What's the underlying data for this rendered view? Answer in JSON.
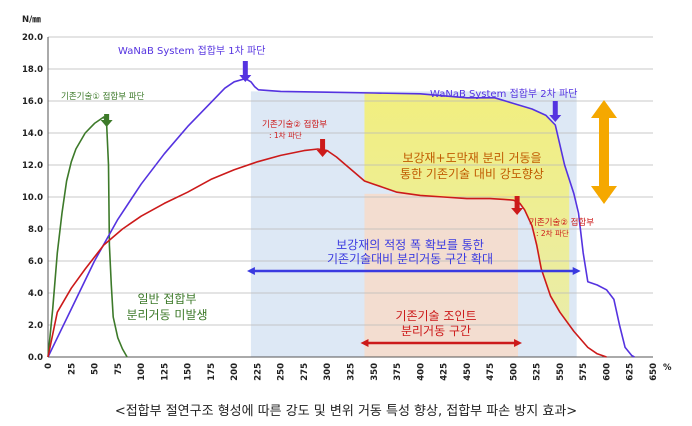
{
  "chart_data": {
    "type": "line",
    "title": "",
    "xlabel": "%",
    "ylabel": "N/㎜",
    "xlim": [
      0,
      650
    ],
    "ylim": [
      0,
      20
    ],
    "x_ticks": [
      0,
      25,
      50,
      75,
      100,
      125,
      150,
      175,
      200,
      225,
      250,
      275,
      300,
      325,
      350,
      375,
      400,
      425,
      450,
      475,
      500,
      525,
      550,
      575,
      600,
      625,
      650
    ],
    "y_ticks": [
      "0.0",
      "2.0",
      "4.0",
      "6.0",
      "8.0",
      "10.0",
      "12.0",
      "14.0",
      "16.0",
      "18.0",
      "20.0"
    ],
    "grid": true,
    "series": [
      {
        "color": "#3d7a2a",
        "points": [
          [
            0,
            0
          ],
          [
            5,
            3
          ],
          [
            10,
            6.5
          ],
          [
            15,
            9
          ],
          [
            20,
            11
          ],
          [
            25,
            12.2
          ],
          [
            30,
            13
          ],
          [
            40,
            14
          ],
          [
            50,
            14.6
          ],
          [
            60,
            15
          ],
          [
            63,
            14.6
          ],
          [
            65,
            12
          ],
          [
            66,
            7
          ],
          [
            68,
            4.5
          ],
          [
            70,
            2.5
          ],
          [
            75,
            1.2
          ],
          [
            80,
            0.5
          ],
          [
            85,
            0
          ]
        ]
      },
      {
        "color": "#5533e0",
        "points": [
          [
            0,
            0
          ],
          [
            10,
            1.2
          ],
          [
            25,
            3
          ],
          [
            50,
            6
          ],
          [
            75,
            8.6
          ],
          [
            100,
            10.8
          ],
          [
            125,
            12.7
          ],
          [
            150,
            14.4
          ],
          [
            175,
            15.9
          ],
          [
            190,
            16.8
          ],
          [
            200,
            17.2
          ],
          [
            212,
            17.4
          ],
          [
            218,
            17.2
          ],
          [
            222,
            16.9
          ],
          [
            226,
            16.7
          ],
          [
            250,
            16.6
          ],
          [
            300,
            16.55
          ],
          [
            350,
            16.5
          ],
          [
            400,
            16.45
          ],
          [
            450,
            16.2
          ],
          [
            480,
            16.2
          ],
          [
            520,
            15.5
          ],
          [
            535,
            15.1
          ],
          [
            545,
            14.5
          ],
          [
            555,
            12
          ],
          [
            565,
            10.2
          ],
          [
            570,
            9
          ],
          [
            575,
            6.5
          ],
          [
            580,
            4.7
          ],
          [
            590,
            4.5
          ],
          [
            600,
            4.2
          ],
          [
            608,
            3.6
          ],
          [
            614,
            2
          ],
          [
            620,
            0.6
          ],
          [
            627,
            0.1
          ],
          [
            630,
            0
          ]
        ]
      },
      {
        "color": "#cc1a1a",
        "points": [
          [
            0,
            0
          ],
          [
            10,
            2.8
          ],
          [
            25,
            4.3
          ],
          [
            40,
            5.5
          ],
          [
            60,
            7
          ],
          [
            80,
            8
          ],
          [
            100,
            8.8
          ],
          [
            125,
            9.6
          ],
          [
            150,
            10.3
          ],
          [
            175,
            11.1
          ],
          [
            200,
            11.7
          ],
          [
            225,
            12.2
          ],
          [
            250,
            12.6
          ],
          [
            275,
            12.9
          ],
          [
            290,
            13
          ],
          [
            300,
            12.9
          ],
          [
            310,
            12.5
          ],
          [
            320,
            12
          ],
          [
            330,
            11.5
          ],
          [
            340,
            11
          ],
          [
            350,
            10.8
          ],
          [
            375,
            10.3
          ],
          [
            400,
            10.1
          ],
          [
            425,
            10
          ],
          [
            450,
            9.9
          ],
          [
            475,
            9.9
          ],
          [
            490,
            9.85
          ],
          [
            500,
            9.8
          ],
          [
            507,
            9.6
          ],
          [
            512,
            9.2
          ],
          [
            520,
            8.2
          ],
          [
            525,
            7
          ],
          [
            530,
            5.5
          ],
          [
            540,
            3.8
          ],
          [
            550,
            2.8
          ],
          [
            565,
            1.6
          ],
          [
            580,
            0.6
          ],
          [
            590,
            0.2
          ],
          [
            600,
            0
          ]
        ]
      }
    ],
    "shaded_regions": [
      {
        "x": [
          218,
          568
        ],
        "y": [
          0,
          16.6
        ],
        "color": "#dde8f5"
      },
      {
        "x": [
          340,
          505
        ],
        "y": [
          0,
          10.2
        ],
        "color": "#f3ddd0"
      }
    ],
    "annotations": {
      "conv1": "기존기술① 접합부 파단",
      "wanab1": "WaNaB System 접합부 1차 파단",
      "wanab2": "WaNaB System 접합부 2차 파단",
      "conv2_first_a": "기존기술② 접합부",
      "conv2_first_b": ": 1차 파단",
      "conv2_second_a": "기존기술② 접합부",
      "conv2_second_b": ": 2차 파단",
      "reinforce_a": "보강재+도막재 분리 거동을",
      "reinforce_b": "통한 기존기술 대비 강도향상",
      "blue_range_a": "보강재의 적정 폭 확보를 통한",
      "blue_range_b": "기존기술대비 분리거동 구간 확대",
      "green_a": "일반 접합부",
      "green_b": "분리거동 미발생",
      "red_range_a": "기존기술 조인트",
      "red_range_b": "분리거동 구간"
    }
  },
  "caption": "<접합부 절연구조 형성에 따른 강도 및 변위 거동 특성 향상, 접합부 파손 방지 효과>",
  "colors": {
    "green": "#3d7a2a",
    "blue": "#5533e0",
    "red": "#cc1a1a",
    "yellow_fill": "#f5f06a",
    "orange_arrow": "#f5a800",
    "range_arrow_blue": "#3a3ae0",
    "grid": "#b8b8b8"
  }
}
